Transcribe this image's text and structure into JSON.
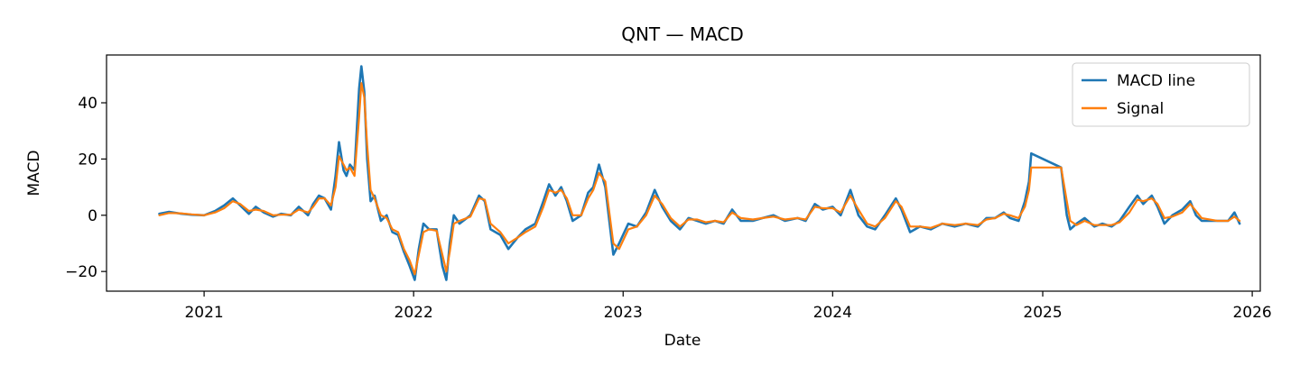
{
  "chart_data": {
    "type": "line",
    "title": "QNT — MACD",
    "xlabel": "Date",
    "ylabel": "MACD",
    "xlim": [
      "2020-07-15",
      "2026-01-15"
    ],
    "ylim": [
      -27,
      57
    ],
    "x_ticks": [
      "2021",
      "2022",
      "2023",
      "2024",
      "2025",
      "2026"
    ],
    "y_ticks": [
      -20,
      0,
      20,
      40
    ],
    "y_tick_labels": [
      "−20",
      "0",
      "20",
      "40"
    ],
    "grid": false,
    "legend": {
      "placement": "top-right"
    },
    "series": [
      {
        "name": "MACD line",
        "color": "#1f77b4",
        "points": [
          [
            "2020-10-15",
            0.5
          ],
          [
            "2020-11-01",
            1.2
          ],
          [
            "2020-11-20",
            0.6
          ],
          [
            "2020-12-10",
            0.2
          ],
          [
            "2021-01-01",
            0.0
          ],
          [
            "2021-01-20",
            1.5
          ],
          [
            "2021-02-05",
            3.5
          ],
          [
            "2021-02-20",
            6.0
          ],
          [
            "2021-03-05",
            3.5
          ],
          [
            "2021-03-20",
            0.5
          ],
          [
            "2021-04-01",
            3.0
          ],
          [
            "2021-04-15",
            1.0
          ],
          [
            "2021-05-01",
            -0.5
          ],
          [
            "2021-05-15",
            0.5
          ],
          [
            "2021-06-01",
            0.0
          ],
          [
            "2021-06-15",
            3.0
          ],
          [
            "2021-07-01",
            0.0
          ],
          [
            "2021-07-10",
            4.0
          ],
          [
            "2021-07-20",
            7.0
          ],
          [
            "2021-07-30",
            6.0
          ],
          [
            "2021-08-10",
            2.0
          ],
          [
            "2021-08-18",
            14.0
          ],
          [
            "2021-08-24",
            26.0
          ],
          [
            "2021-09-01",
            16.0
          ],
          [
            "2021-09-06",
            14.0
          ],
          [
            "2021-09-12",
            18.0
          ],
          [
            "2021-09-20",
            16.0
          ],
          [
            "2021-09-28",
            45.0
          ],
          [
            "2021-10-02",
            53.0
          ],
          [
            "2021-10-07",
            44.0
          ],
          [
            "2021-10-12",
            20.0
          ],
          [
            "2021-10-18",
            5.0
          ],
          [
            "2021-10-25",
            7.0
          ],
          [
            "2021-11-05",
            -2.0
          ],
          [
            "2021-11-15",
            0.0
          ],
          [
            "2021-11-25",
            -6.0
          ],
          [
            "2021-12-05",
            -7.0
          ],
          [
            "2021-12-15",
            -13.0
          ],
          [
            "2021-12-25",
            -18.0
          ],
          [
            "2022-01-03",
            -23.0
          ],
          [
            "2022-01-10",
            -12.0
          ],
          [
            "2022-01-18",
            -3.0
          ],
          [
            "2022-01-28",
            -5.0
          ],
          [
            "2022-02-10",
            -5.0
          ],
          [
            "2022-02-20",
            -18.0
          ],
          [
            "2022-02-27",
            -23.0
          ],
          [
            "2022-03-05",
            -10.0
          ],
          [
            "2022-03-12",
            0.0
          ],
          [
            "2022-03-22",
            -3.0
          ],
          [
            "2022-04-10",
            0.0
          ],
          [
            "2022-04-25",
            7.0
          ],
          [
            "2022-05-05",
            5.0
          ],
          [
            "2022-05-15",
            -5.0
          ],
          [
            "2022-06-01",
            -7.0
          ],
          [
            "2022-06-15",
            -12.0
          ],
          [
            "2022-07-01",
            -8.0
          ],
          [
            "2022-07-15",
            -5.0
          ],
          [
            "2022-08-01",
            -3.0
          ],
          [
            "2022-08-15",
            5.0
          ],
          [
            "2022-08-25",
            11.0
          ],
          [
            "2022-09-05",
            7.0
          ],
          [
            "2022-09-15",
            10.0
          ],
          [
            "2022-09-25",
            5.0
          ],
          [
            "2022-10-05",
            -2.0
          ],
          [
            "2022-10-20",
            0.0
          ],
          [
            "2022-11-01",
            8.0
          ],
          [
            "2022-11-10",
            10.0
          ],
          [
            "2022-11-20",
            18.0
          ],
          [
            "2022-12-01",
            10.0
          ],
          [
            "2022-12-15",
            -14.0
          ],
          [
            "2022-12-25",
            -10.0
          ],
          [
            "2023-01-10",
            -3.0
          ],
          [
            "2023-01-25",
            -4.0
          ],
          [
            "2023-02-10",
            1.0
          ],
          [
            "2023-02-25",
            9.0
          ],
          [
            "2023-03-10",
            3.0
          ],
          [
            "2023-03-25",
            -2.0
          ],
          [
            "2023-04-10",
            -5.0
          ],
          [
            "2023-04-25",
            -1.0
          ],
          [
            "2023-05-10",
            -2.0
          ],
          [
            "2023-05-25",
            -3.0
          ],
          [
            "2023-06-10",
            -2.0
          ],
          [
            "2023-06-25",
            -3.0
          ],
          [
            "2023-07-10",
            2.0
          ],
          [
            "2023-07-25",
            -2.0
          ],
          [
            "2023-08-15",
            -2.0
          ],
          [
            "2023-09-01",
            -1.0
          ],
          [
            "2023-09-20",
            0.0
          ],
          [
            "2023-10-10",
            -2.0
          ],
          [
            "2023-11-01",
            -1.0
          ],
          [
            "2023-11-15",
            -2.0
          ],
          [
            "2023-12-01",
            4.0
          ],
          [
            "2023-12-15",
            2.0
          ],
          [
            "2024-01-01",
            3.0
          ],
          [
            "2024-01-15",
            0.0
          ],
          [
            "2024-02-01",
            9.0
          ],
          [
            "2024-02-15",
            0.0
          ],
          [
            "2024-03-01",
            -4.0
          ],
          [
            "2024-03-15",
            -5.0
          ],
          [
            "2024-04-01",
            0.0
          ],
          [
            "2024-04-20",
            6.0
          ],
          [
            "2024-04-30",
            2.0
          ],
          [
            "2024-05-15",
            -6.0
          ],
          [
            "2024-06-01",
            -4.0
          ],
          [
            "2024-06-20",
            -5.0
          ],
          [
            "2024-07-10",
            -3.0
          ],
          [
            "2024-08-01",
            -4.0
          ],
          [
            "2024-08-20",
            -3.0
          ],
          [
            "2024-09-10",
            -4.0
          ],
          [
            "2024-09-25",
            -1.0
          ],
          [
            "2024-10-10",
            -1.0
          ],
          [
            "2024-10-25",
            1.0
          ],
          [
            "2024-11-05",
            -1.0
          ],
          [
            "2024-11-20",
            -2.0
          ],
          [
            "2024-12-01",
            5.0
          ],
          [
            "2024-12-08",
            12.0
          ],
          [
            "2024-12-12",
            22.0
          ],
          [
            "2025-02-02",
            17.0
          ],
          [
            "2025-02-12",
            0.0
          ],
          [
            "2025-02-18",
            -5.0
          ],
          [
            "2025-03-01",
            -3.0
          ],
          [
            "2025-03-15",
            -1.0
          ],
          [
            "2025-04-01",
            -4.0
          ],
          [
            "2025-04-15",
            -3.0
          ],
          [
            "2025-05-01",
            -4.0
          ],
          [
            "2025-05-15",
            -2.0
          ],
          [
            "2025-06-01",
            3.0
          ],
          [
            "2025-06-15",
            7.0
          ],
          [
            "2025-06-25",
            4.0
          ],
          [
            "2025-07-10",
            7.0
          ],
          [
            "2025-07-20",
            3.0
          ],
          [
            "2025-08-01",
            -3.0
          ],
          [
            "2025-08-15",
            0.0
          ],
          [
            "2025-09-01",
            2.0
          ],
          [
            "2025-09-15",
            5.0
          ],
          [
            "2025-09-25",
            0.0
          ],
          [
            "2025-10-05",
            -2.0
          ],
          [
            "2025-11-01",
            -2.0
          ],
          [
            "2025-11-20",
            -2.0
          ],
          [
            "2025-12-01",
            1.0
          ],
          [
            "2025-12-10",
            -3.0
          ]
        ]
      },
      {
        "name": "Signal",
        "color": "#ff7f0e",
        "points": [
          [
            "2020-10-15",
            0.0
          ],
          [
            "2020-11-01",
            0.8
          ],
          [
            "2020-11-20",
            0.7
          ],
          [
            "2020-12-10",
            0.3
          ],
          [
            "2021-01-01",
            0.0
          ],
          [
            "2021-01-20",
            1.0
          ],
          [
            "2021-02-05",
            2.5
          ],
          [
            "2021-02-20",
            5.0
          ],
          [
            "2021-03-05",
            4.0
          ],
          [
            "2021-03-20",
            1.5
          ],
          [
            "2021-04-01",
            2.0
          ],
          [
            "2021-04-15",
            1.5
          ],
          [
            "2021-05-01",
            0.0
          ],
          [
            "2021-05-15",
            0.2
          ],
          [
            "2021-06-01",
            0.2
          ],
          [
            "2021-06-15",
            2.0
          ],
          [
            "2021-07-01",
            1.0
          ],
          [
            "2021-07-10",
            3.0
          ],
          [
            "2021-07-20",
            6.0
          ],
          [
            "2021-07-30",
            6.0
          ],
          [
            "2021-08-10",
            3.5
          ],
          [
            "2021-08-18",
            10.0
          ],
          [
            "2021-08-24",
            21.0
          ],
          [
            "2021-09-01",
            18.0
          ],
          [
            "2021-09-06",
            16.0
          ],
          [
            "2021-09-12",
            17.0
          ],
          [
            "2021-09-20",
            14.0
          ],
          [
            "2021-09-28",
            35.0
          ],
          [
            "2021-10-02",
            47.0
          ],
          [
            "2021-10-07",
            42.0
          ],
          [
            "2021-10-12",
            25.0
          ],
          [
            "2021-10-18",
            9.0
          ],
          [
            "2021-10-25",
            6.0
          ],
          [
            "2021-11-05",
            0.0
          ],
          [
            "2021-11-15",
            -1.0
          ],
          [
            "2021-11-25",
            -5.0
          ],
          [
            "2021-12-05",
            -6.0
          ],
          [
            "2021-12-15",
            -12.0
          ],
          [
            "2021-12-25",
            -16.0
          ],
          [
            "2022-01-03",
            -21.0
          ],
          [
            "2022-01-10",
            -14.0
          ],
          [
            "2022-01-18",
            -6.0
          ],
          [
            "2022-01-28",
            -5.0
          ],
          [
            "2022-02-10",
            -5.5
          ],
          [
            "2022-02-20",
            -14.0
          ],
          [
            "2022-02-27",
            -20.0
          ],
          [
            "2022-03-05",
            -13.0
          ],
          [
            "2022-03-12",
            -3.0
          ],
          [
            "2022-03-22",
            -2.0
          ],
          [
            "2022-04-10",
            -0.5
          ],
          [
            "2022-04-25",
            6.0
          ],
          [
            "2022-05-05",
            5.5
          ],
          [
            "2022-05-15",
            -3.0
          ],
          [
            "2022-06-01",
            -6.0
          ],
          [
            "2022-06-15",
            -10.0
          ],
          [
            "2022-07-01",
            -8.0
          ],
          [
            "2022-07-15",
            -6.0
          ],
          [
            "2022-08-01",
            -4.0
          ],
          [
            "2022-08-15",
            3.0
          ],
          [
            "2022-08-25",
            9.0
          ],
          [
            "2022-09-05",
            8.0
          ],
          [
            "2022-09-15",
            9.0
          ],
          [
            "2022-09-25",
            6.0
          ],
          [
            "2022-10-05",
            0.0
          ],
          [
            "2022-10-20",
            0.0
          ],
          [
            "2022-11-01",
            6.0
          ],
          [
            "2022-11-10",
            9.0
          ],
          [
            "2022-11-20",
            15.0
          ],
          [
            "2022-12-01",
            12.0
          ],
          [
            "2022-12-15",
            -10.0
          ],
          [
            "2022-12-25",
            -12.0
          ],
          [
            "2023-01-10",
            -5.0
          ],
          [
            "2023-01-25",
            -4.0
          ],
          [
            "2023-02-10",
            0.0
          ],
          [
            "2023-02-25",
            7.0
          ],
          [
            "2023-03-10",
            4.0
          ],
          [
            "2023-03-25",
            -1.0
          ],
          [
            "2023-04-10",
            -4.0
          ],
          [
            "2023-04-25",
            -1.5
          ],
          [
            "2023-05-10",
            -1.5
          ],
          [
            "2023-05-25",
            -2.5
          ],
          [
            "2023-06-10",
            -2.0
          ],
          [
            "2023-06-25",
            -2.5
          ],
          [
            "2023-07-10",
            1.0
          ],
          [
            "2023-07-25",
            -1.0
          ],
          [
            "2023-08-15",
            -1.5
          ],
          [
            "2023-09-01",
            -1.0
          ],
          [
            "2023-09-20",
            -0.5
          ],
          [
            "2023-10-10",
            -1.5
          ],
          [
            "2023-11-01",
            -1.0
          ],
          [
            "2023-11-15",
            -1.5
          ],
          [
            "2023-12-01",
            3.0
          ],
          [
            "2023-12-15",
            2.5
          ],
          [
            "2024-01-01",
            2.5
          ],
          [
            "2024-01-15",
            1.0
          ],
          [
            "2024-02-01",
            7.0
          ],
          [
            "2024-02-15",
            2.0
          ],
          [
            "2024-03-01",
            -3.0
          ],
          [
            "2024-03-15",
            -4.0
          ],
          [
            "2024-04-01",
            -1.0
          ],
          [
            "2024-04-20",
            5.0
          ],
          [
            "2024-04-30",
            3.0
          ],
          [
            "2024-05-15",
            -4.0
          ],
          [
            "2024-06-01",
            -4.0
          ],
          [
            "2024-06-20",
            -4.5
          ],
          [
            "2024-07-10",
            -3.0
          ],
          [
            "2024-08-01",
            -3.5
          ],
          [
            "2024-08-20",
            -3.0
          ],
          [
            "2024-09-10",
            -3.5
          ],
          [
            "2024-09-25",
            -1.5
          ],
          [
            "2024-10-10",
            -1.0
          ],
          [
            "2024-10-25",
            0.5
          ],
          [
            "2024-11-05",
            0.0
          ],
          [
            "2024-11-20",
            -1.0
          ],
          [
            "2024-12-01",
            3.0
          ],
          [
            "2024-12-08",
            9.0
          ],
          [
            "2024-12-12",
            17.0
          ],
          [
            "2025-02-02",
            17.0
          ],
          [
            "2025-02-12",
            5.0
          ],
          [
            "2025-02-18",
            -2.0
          ],
          [
            "2025-03-01",
            -3.5
          ],
          [
            "2025-03-15",
            -2.0
          ],
          [
            "2025-04-01",
            -3.5
          ],
          [
            "2025-04-15",
            -3.5
          ],
          [
            "2025-05-01",
            -3.5
          ],
          [
            "2025-05-15",
            -2.5
          ],
          [
            "2025-06-01",
            1.0
          ],
          [
            "2025-06-15",
            5.5
          ],
          [
            "2025-06-25",
            5.0
          ],
          [
            "2025-07-10",
            6.0
          ],
          [
            "2025-07-20",
            4.0
          ],
          [
            "2025-08-01",
            -1.0
          ],
          [
            "2025-08-15",
            -0.5
          ],
          [
            "2025-09-01",
            1.0
          ],
          [
            "2025-09-15",
            4.0
          ],
          [
            "2025-09-25",
            1.5
          ],
          [
            "2025-10-05",
            -1.0
          ],
          [
            "2025-11-01",
            -2.0
          ],
          [
            "2025-11-20",
            -2.0
          ],
          [
            "2025-12-01",
            -0.5
          ],
          [
            "2025-12-10",
            -2.0
          ]
        ]
      }
    ]
  }
}
